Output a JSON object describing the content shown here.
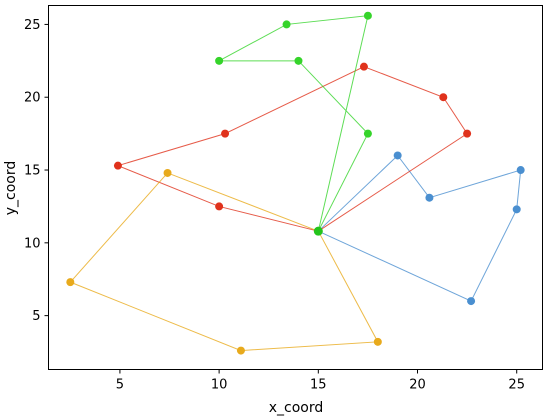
{
  "chart_data": {
    "type": "line",
    "title": "",
    "xlabel": "x_coord",
    "ylabel": "y_coord",
    "xlim": [
      1.4,
      26.3
    ],
    "ylim": [
      1.3,
      26.3
    ],
    "x_ticks": [
      5,
      10,
      15,
      20,
      25
    ],
    "y_ticks": [
      5,
      10,
      15,
      20,
      25
    ],
    "grid": false,
    "hub": [
      15.0,
      10.8
    ],
    "series": [
      {
        "color": "#4a8fd0",
        "points": [
          [
            15.0,
            10.8
          ],
          [
            19.0,
            16.0
          ],
          [
            20.6,
            13.1
          ],
          [
            25.2,
            15.0
          ],
          [
            25.0,
            12.3
          ],
          [
            22.7,
            6.0
          ],
          [
            15.0,
            10.8
          ]
        ]
      },
      {
        "color": "#e0321c",
        "points": [
          [
            15.0,
            10.8
          ],
          [
            22.5,
            17.5
          ],
          [
            21.3,
            20.0
          ],
          [
            17.3,
            22.1
          ],
          [
            10.3,
            17.5
          ],
          [
            4.9,
            15.3
          ],
          [
            10.0,
            12.5
          ],
          [
            15.0,
            10.8
          ]
        ]
      },
      {
        "color": "#35d42a",
        "points": [
          [
            15.0,
            10.8
          ],
          [
            17.5,
            17.5
          ],
          [
            14.0,
            22.5
          ],
          [
            10.0,
            22.5
          ],
          [
            13.4,
            25.0
          ],
          [
            17.5,
            25.6
          ],
          [
            15.0,
            10.8
          ]
        ]
      },
      {
        "color": "#e8aa1c",
        "points": [
          [
            15.0,
            10.8
          ],
          [
            18.0,
            3.2
          ],
          [
            11.1,
            2.6
          ],
          [
            2.5,
            7.3
          ],
          [
            7.4,
            14.8
          ],
          [
            15.0,
            10.8
          ]
        ]
      }
    ]
  }
}
